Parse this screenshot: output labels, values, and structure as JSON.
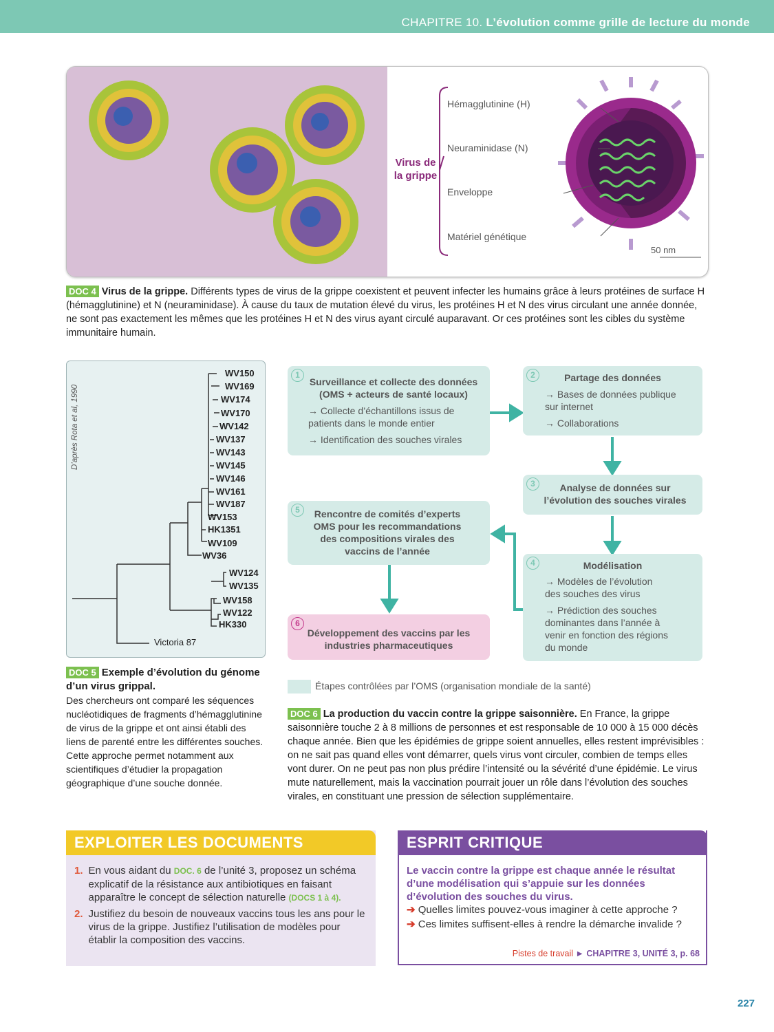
{
  "header": {
    "chapter": "CHAPITRE 10.",
    "title": "L’évolution comme grille de lecture du monde"
  },
  "doc4": {
    "virus_title": "Virus de la grippe",
    "labels": [
      "Hémagglutinine (H)",
      "Neuraminidase (N)",
      "Enveloppe",
      "Matériel génétique"
    ],
    "scale": "50 nm",
    "tag": "DOC 4",
    "caption_title": "Virus de la grippe.",
    "caption": "Différents types de virus de la grippe coexistent et peuvent infecter les humains grâce à leurs protéines de surface H (hémagglutinine) et N (neuraminidase). À cause du taux de mutation élevé du virus, les protéines H et N des virus circulant une année donnée, ne sont pas exactement les mêmes que les protéines H et N des virus ayant circulé auparavant. Or ces protéines sont les cibles du système immunitaire humain."
  },
  "doc5": {
    "source": "D’après Rota et al, 1990",
    "leaves": [
      "WV150",
      "WV169",
      "WV174",
      "WV170",
      "WV142",
      "WV137",
      "WV143",
      "WV145",
      "WV146",
      "WV161",
      "WV187",
      "WV153",
      "HK1351",
      "WV109",
      "WV36",
      "WV124",
      "WV135",
      "WV158",
      "WV122",
      "HK330",
      "Victoria 87"
    ],
    "tag": "DOC 5",
    "caption_title": "Exemple d’évolution du génome d’un virus grippal.",
    "caption": "Des chercheurs ont comparé les séquences nucléotidiques de fragments d’hémagglutinine de virus de la grippe et ont ainsi établi des liens de parenté entre les différentes souches.",
    "caption2": "Cette approche permet notamment aux scientifiques d’étudier la propagation géographique d’une souche donnée."
  },
  "doc6": {
    "steps": [
      {
        "num": "1",
        "title": "Surveillance et collecte des données (OMS + acteurs de santé locaux)",
        "items": [
          "→ Collecte d’échantillons issus de patients dans le monde entier",
          "→ Identification des souches virales"
        ]
      },
      {
        "num": "2",
        "title": "Partage des données",
        "items": [
          "→ Bases de données publique sur internet",
          "→ Collaborations"
        ]
      },
      {
        "num": "3",
        "title": "Analyse de données sur l’évolution des souches virales",
        "items": []
      },
      {
        "num": "4",
        "title": "Modélisation",
        "items": [
          "→ Modèles de l’évolution des souches des virus",
          "→ Prédiction des souches dominantes dans l’année à venir en fonction des régions du monde"
        ]
      },
      {
        "num": "5",
        "title": "Rencontre de comités d’experts OMS pour les recommandations des compositions virales des vaccins de l’année",
        "items": []
      },
      {
        "num": "6",
        "title": "Développement des vaccins par les industries pharmaceutiques",
        "items": []
      }
    ],
    "legend": "Étapes contrôlées par l’OMS (organisation mondiale de la santé)",
    "tag": "DOC 6",
    "caption_title": "La production du vaccin contre la grippe saisonnière.",
    "caption": "En France, la grippe saisonnière touche 2 à 8 millions de personnes et est responsable de 10 000 à 15 000 décès chaque année. Bien que les épidémies de grippe soient annuelles, elles restent imprévisibles : on ne sait pas quand elles vont démarrer, quels virus vont circuler, combien de temps elles vont durer. On ne peut pas non plus prédire l’intensité ou la sévérité d’une épidémie. Le virus mute naturellement, mais la vaccination pourrait jouer un rôle dans l’évolution des souches virales, en constituant une pression de sélection supplémentaire."
  },
  "exploiter": {
    "title": "EXPLOITER LES DOCUMENTS",
    "q1_num": "1.",
    "q1_a": "En vous aidant du",
    "q1_doc": "DOC. 6",
    "q1_b": "de l’unité 3, proposez un schéma explicatif de la résistance aux antibiotiques en faisant apparaître le concept de sélection naturelle",
    "q1_docs": "(DOCS 1 à 4).",
    "q2_num": "2.",
    "q2": "Justifiez du besoin de nouveaux vaccins tous les ans pour le virus de la grippe. Justifiez l’utilisation de modèles pour établir la composition des vaccins."
  },
  "esprit": {
    "title": "ESPRIT CRITIQUE",
    "question": "Le vaccin contre la grippe est chaque année le résultat d’une modélisation qui s’appuie sur les données d’évolution des souches du virus.",
    "arrow": "➔",
    "item1": "Quelles limites pouvez-vous imaginer à cette approche ?",
    "item2": "Ces limites suffisent-elles à rendre la démarche invalide ?",
    "pistes_label": "Pistes de travail",
    "pistes_arrow": "►",
    "pistes_ref": "CHAPITRE 3, UNITÉ 3, p. 68"
  },
  "page_number": "227",
  "colors": {
    "header": "#7dc8b4",
    "step": "#d5ebe7",
    "step6": "#f3cfe2",
    "arrow": "#3fb3a3",
    "doc_tag": "#7cc04f",
    "exploiter": "#f2c927",
    "esprit": "#7a4fa0",
    "virus": "#8a2a7a"
  }
}
